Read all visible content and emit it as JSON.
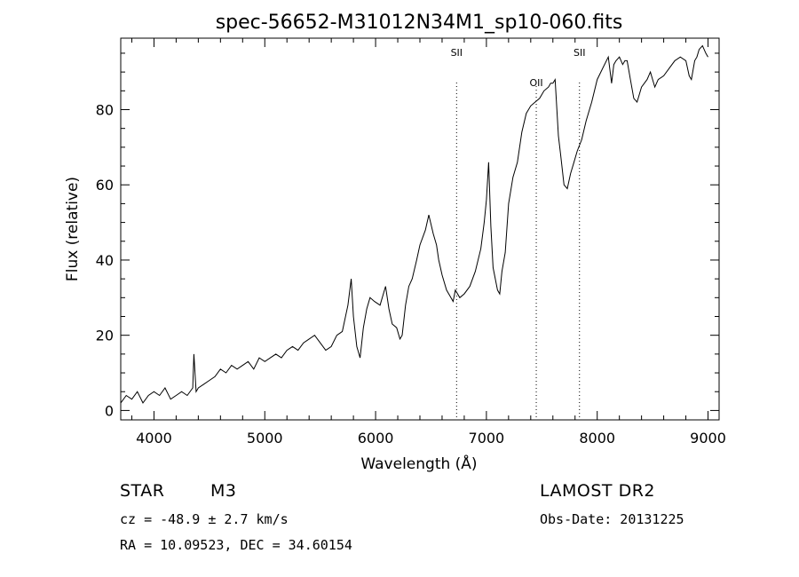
{
  "chart_data": {
    "type": "line",
    "title": "spec-56652-M31012N34M1_sp10-060.fits",
    "xlabel": "Wavelength (Å)",
    "ylabel": "Flux (relative)",
    "xlim": [
      3700,
      9100
    ],
    "ylim": [
      -2.5,
      99
    ],
    "xticks": [
      4000,
      5000,
      6000,
      7000,
      8000,
      9000
    ],
    "yticks": [
      0,
      20,
      40,
      60,
      80
    ],
    "grid": false,
    "line_color": "#000000",
    "series": [
      {
        "x": [
          3700,
          3750,
          3800,
          3850,
          3900,
          3950,
          4000,
          4050,
          4100,
          4150,
          4200,
          4250,
          4300,
          4350,
          4360,
          4380,
          4400,
          4450,
          4500,
          4550,
          4600,
          4650,
          4700,
          4750,
          4800,
          4850,
          4900,
          4950,
          5000,
          5050,
          5100,
          5150,
          5200,
          5250,
          5300,
          5350,
          5400,
          5450,
          5500,
          5550,
          5600,
          5650,
          5700,
          5750,
          5780,
          5800,
          5830,
          5860,
          5890,
          5920,
          5950,
          5990,
          6040,
          6090,
          6120,
          6150,
          6190,
          6220,
          6240,
          6270,
          6300,
          6330,
          6370,
          6400,
          6450,
          6480,
          6520,
          6550,
          6570,
          6600,
          6640,
          6680,
          6700,
          6720,
          6760,
          6800,
          6850,
          6900,
          6950,
          6980,
          7000,
          7020,
          7040,
          7060,
          7080,
          7100,
          7120,
          7140,
          7170,
          7200,
          7240,
          7280,
          7320,
          7360,
          7400,
          7440,
          7480,
          7520,
          7560,
          7580,
          7600,
          7620,
          7650,
          7670,
          7700,
          7730,
          7760,
          7790,
          7820,
          7860,
          7900,
          7950,
          8000,
          8050,
          8100,
          8130,
          8150,
          8170,
          8200,
          8230,
          8250,
          8270,
          8300,
          8330,
          8360,
          8400,
          8450,
          8480,
          8520,
          8550,
          8600,
          8650,
          8700,
          8750,
          8800,
          8830,
          8850,
          8880,
          8900,
          8920,
          8950,
          8980,
          9000
        ],
        "values": [
          2,
          4,
          3,
          5,
          2,
          4,
          5,
          4,
          6,
          3,
          4,
          5,
          4,
          6,
          15,
          5,
          6,
          7,
          8,
          9,
          11,
          10,
          12,
          11,
          12,
          13,
          11,
          14,
          13,
          14,
          15,
          14,
          16,
          17,
          16,
          18,
          19,
          20,
          18,
          16,
          17,
          20,
          21,
          28,
          35,
          25,
          17,
          14,
          22,
          27,
          30,
          29,
          28,
          33,
          27,
          23,
          22,
          19,
          20,
          28,
          33,
          35,
          40,
          44,
          48,
          52,
          47,
          44,
          40,
          36,
          32,
          30,
          29,
          32,
          30,
          31,
          33,
          37,
          43,
          50,
          56,
          66,
          49,
          38,
          35,
          32,
          31,
          37,
          42,
          55,
          62,
          66,
          74,
          79,
          81,
          82,
          83,
          85,
          86,
          87,
          87,
          88,
          73,
          68,
          60,
          59,
          63,
          66,
          69,
          72,
          77,
          82,
          88,
          91,
          94,
          87,
          92,
          93,
          94,
          92,
          93,
          93,
          88,
          83,
          82,
          86,
          88,
          90,
          86,
          88,
          89,
          91,
          93,
          94,
          93,
          89,
          88,
          93,
          94,
          96,
          97,
          95,
          94
        ]
      }
    ],
    "annotations": [
      {
        "label": "SII",
        "x": 6731
      },
      {
        "label": "OII",
        "x": 7450
      },
      {
        "label": "SII",
        "x": 7840
      }
    ]
  },
  "info": {
    "obj_class": "STAR",
    "subclass": "M3",
    "survey": "LAMOST DR2",
    "cz": "cz = -48.9 ± 2.7 km/s",
    "obs_date": "Obs-Date: 20131225",
    "coords": "RA =   10.09523, DEC =   34.60154"
  }
}
